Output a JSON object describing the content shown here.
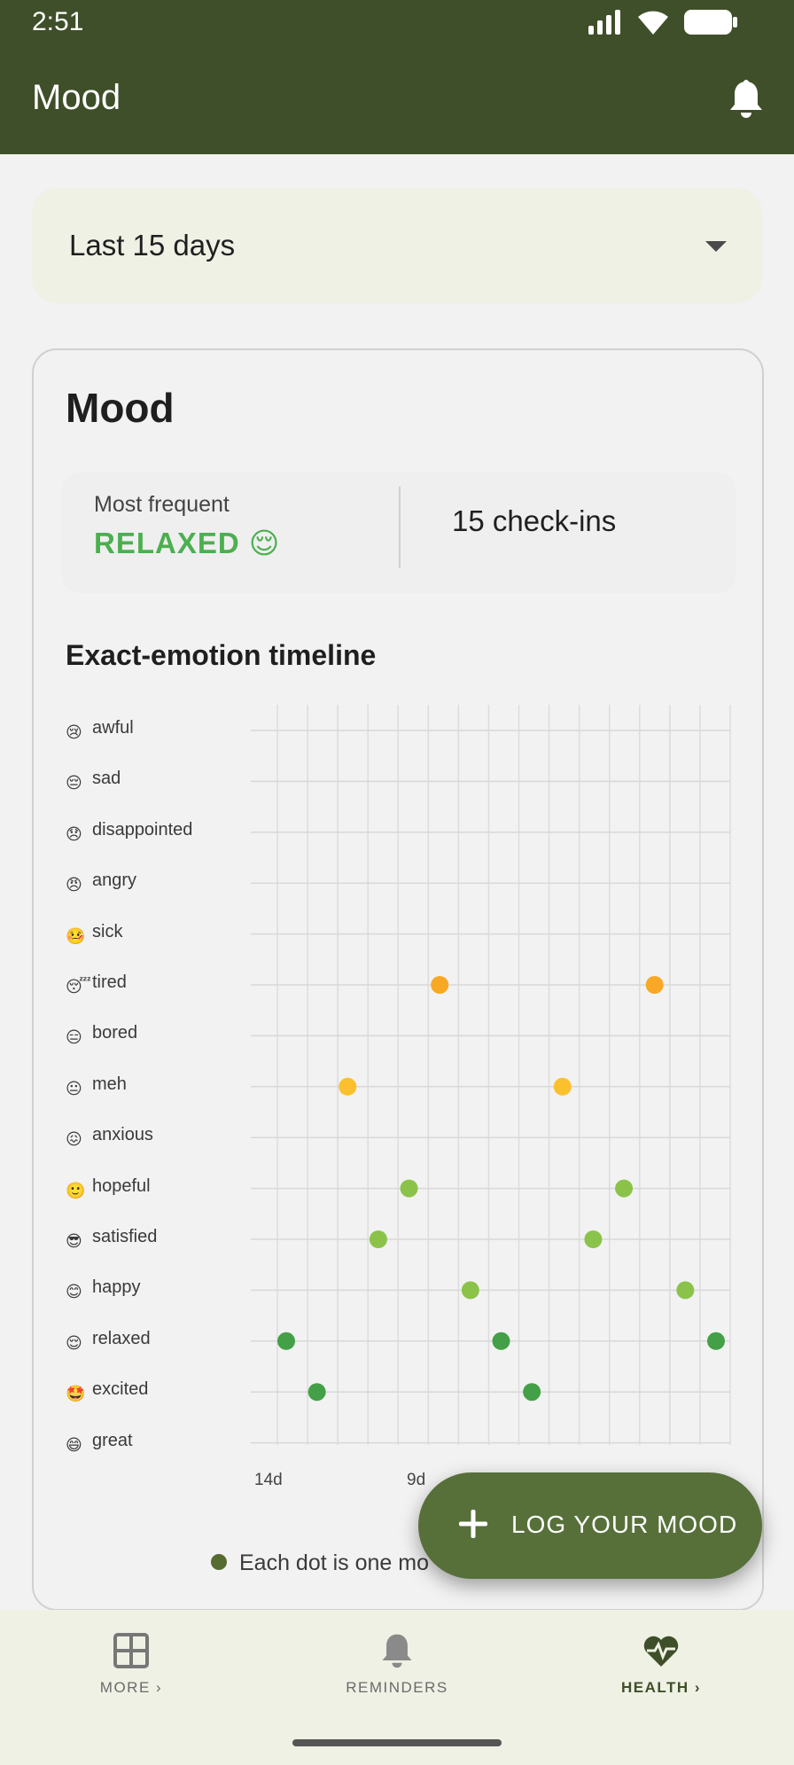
{
  "status_bar": {
    "time": "2:51"
  },
  "app_bar": {
    "title": "Mood"
  },
  "range_selector": {
    "value": "Last 15 days"
  },
  "card": {
    "title": "Mood",
    "most_frequent_label": "Most frequent",
    "most_frequent_value": "RELAXED 😌",
    "checkins": "15 check-ins",
    "timeline_title": "Exact-emotion timeline",
    "legend": "Each dot is one mo"
  },
  "chart_data": {
    "type": "scatter",
    "categories": [
      "awful",
      "sad",
      "disappointed",
      "angry",
      "sick",
      "tired",
      "bored",
      "meh",
      "anxious",
      "hopeful",
      "satisfied",
      "happy",
      "relaxed",
      "excited",
      "great"
    ],
    "category_emojis": [
      "😢",
      "😔",
      "😞",
      "😠",
      "🤒",
      "😴",
      "😑",
      "😐",
      "😖",
      "🙂",
      "😎",
      "😊",
      "😌",
      "🤩",
      "😄"
    ],
    "x_tick_labels": [
      "14d",
      "9d"
    ],
    "xlim": [
      15,
      0
    ],
    "points": [
      {
        "days_ago": 14,
        "emotion": "relaxed",
        "color": "#43a047"
      },
      {
        "days_ago": 13,
        "emotion": "excited",
        "color": "#43a047"
      },
      {
        "days_ago": 12,
        "emotion": "meh",
        "color": "#fbc02d"
      },
      {
        "days_ago": 11,
        "emotion": "satisfied",
        "color": "#8bc34a"
      },
      {
        "days_ago": 10,
        "emotion": "hopeful",
        "color": "#8bc34a"
      },
      {
        "days_ago": 9,
        "emotion": "tired",
        "color": "#f9a825"
      },
      {
        "days_ago": 8,
        "emotion": "happy",
        "color": "#8bc34a"
      },
      {
        "days_ago": 7,
        "emotion": "relaxed",
        "color": "#43a047"
      },
      {
        "days_ago": 6,
        "emotion": "excited",
        "color": "#43a047"
      },
      {
        "days_ago": 5,
        "emotion": "meh",
        "color": "#fbc02d"
      },
      {
        "days_ago": 4,
        "emotion": "satisfied",
        "color": "#8bc34a"
      },
      {
        "days_ago": 3,
        "emotion": "hopeful",
        "color": "#8bc34a"
      },
      {
        "days_ago": 2,
        "emotion": "tired",
        "color": "#f9a825"
      },
      {
        "days_ago": 1,
        "emotion": "happy",
        "color": "#8bc34a"
      },
      {
        "days_ago": 0,
        "emotion": "relaxed",
        "color": "#43a047"
      }
    ],
    "grid": true
  },
  "fab": {
    "label": "LOG YOUR MOOD"
  },
  "bottom_nav": {
    "items": [
      {
        "label": "MORE",
        "icon": "grid-icon"
      },
      {
        "label": "REMINDERS",
        "icon": "bell-icon"
      },
      {
        "label": "HEALTH",
        "icon": "heart-pulse-icon"
      }
    ]
  },
  "colors": {
    "header": "#3f4f29",
    "accent": "#57703a",
    "relaxed": "#4caf50"
  }
}
